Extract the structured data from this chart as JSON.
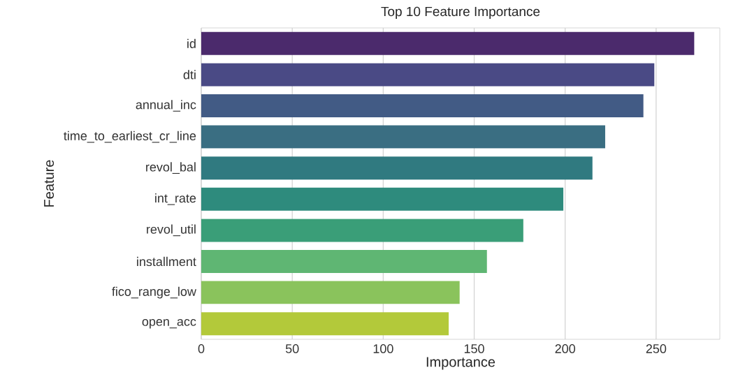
{
  "chart_data": {
    "type": "bar",
    "orientation": "horizontal",
    "title": "Top 10 Feature Importance",
    "xlabel": "Importance",
    "ylabel": "Feature",
    "categories": [
      "id",
      "dti",
      "annual_inc",
      "time_to_earliest_cr_line",
      "revol_bal",
      "int_rate",
      "revol_util",
      "installment",
      "fico_range_low",
      "open_acc"
    ],
    "values": [
      271,
      249,
      243,
      222,
      215,
      199,
      177,
      157,
      142,
      136
    ],
    "colors": [
      "#4b2a6c",
      "#4a4a85",
      "#425b85",
      "#3a6e82",
      "#307a80",
      "#2e8b7d",
      "#3a9e78",
      "#5fb673",
      "#8ac35c",
      "#b3c93a"
    ],
    "xlim": [
      0,
      285
    ],
    "xticks": [
      0,
      50,
      100,
      150,
      200,
      250
    ],
    "grid": "x"
  }
}
